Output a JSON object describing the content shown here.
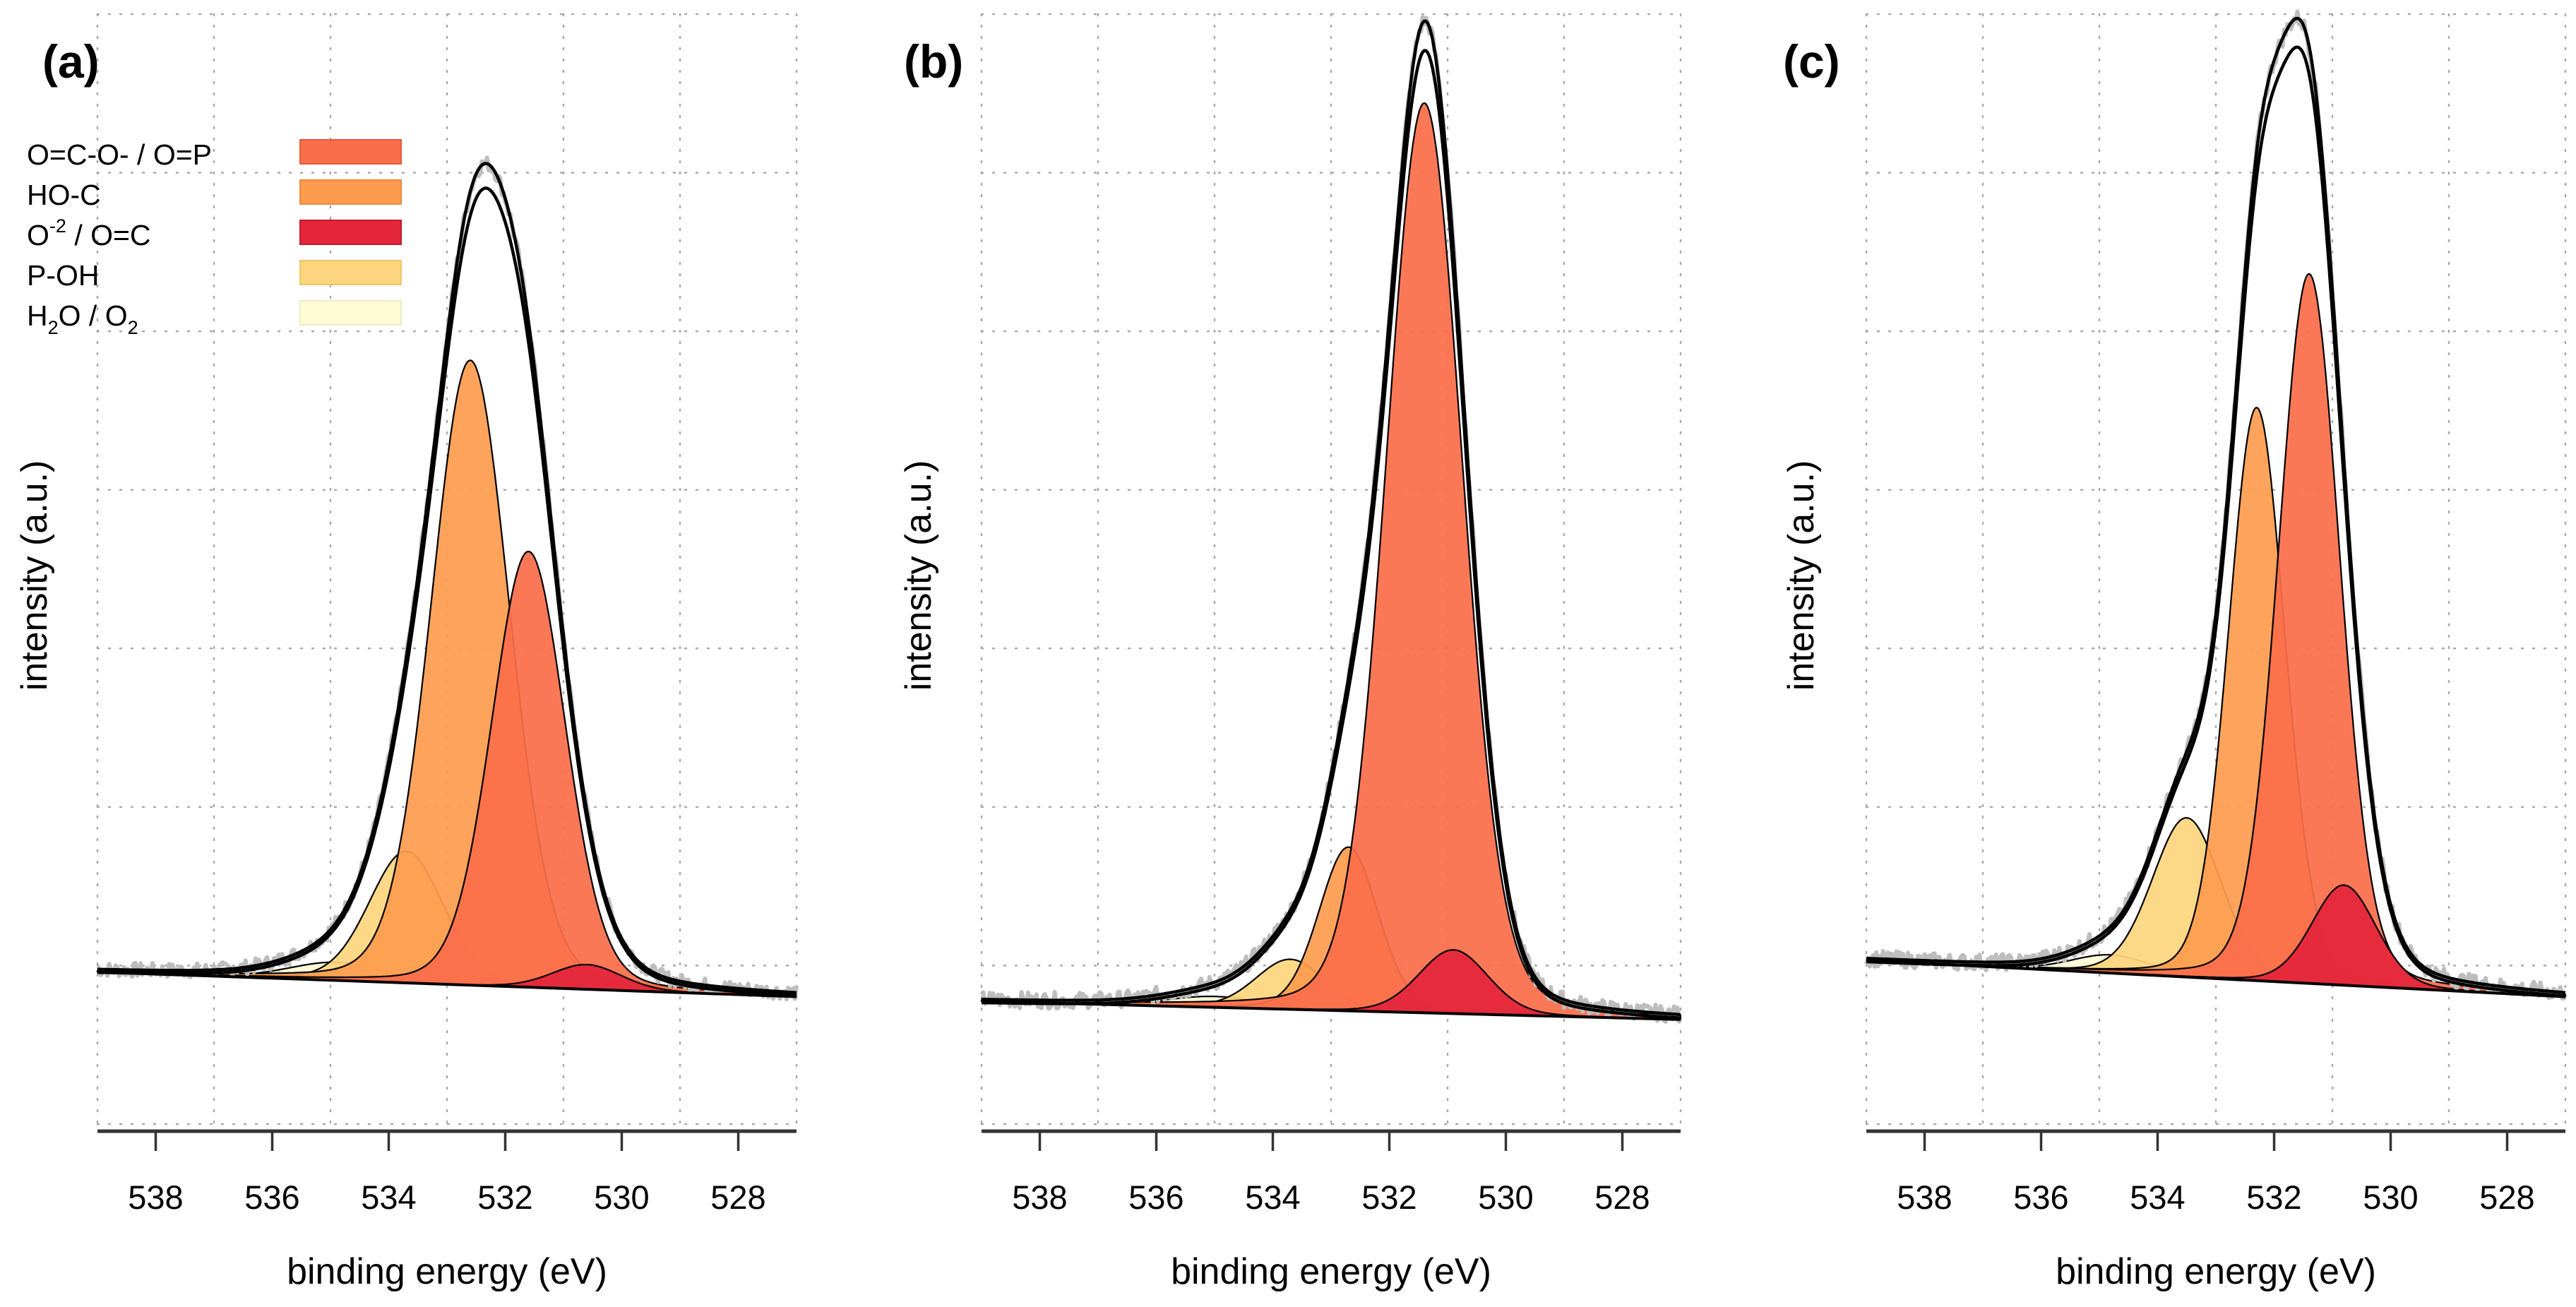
{
  "chart_data": [
    {
      "type": "area",
      "panel_label": "(a)",
      "xlabel": "binding energy (eV)",
      "ylabel": "intensity (a.u.)",
      "xlim": [
        539,
        527
      ],
      "x_reversed": true,
      "ylim": [
        -0.16,
        1.19
      ],
      "x_ticks": [
        "538",
        "536",
        "534",
        "532",
        "530",
        "528"
      ],
      "grid": true,
      "baseline": {
        "start": 0.025,
        "end": -0.005
      },
      "components": [
        {
          "name": "H2O / O2",
          "center": 534.9,
          "height": 0.022,
          "fwhm": 1.9,
          "color": "#FFFBD4"
        },
        {
          "name": "P-OH",
          "center": 533.7,
          "height": 0.16,
          "fwhm": 1.5,
          "color": "#FDD57E"
        },
        {
          "name": "HO-C",
          "center": 532.6,
          "height": 0.76,
          "fwhm": 1.6,
          "color": "#FD9C4F"
        },
        {
          "name": "O=C-O- / O=P",
          "center": 531.6,
          "height": 0.53,
          "fwhm": 1.5,
          "color": "#FB6E4A"
        },
        {
          "name": "O-2 / O=C",
          "center": 530.6,
          "height": 0.03,
          "fwhm": 1.4,
          "color": "#E3263A"
        }
      ],
      "envelope_peak": 1.0
    },
    {
      "type": "area",
      "panel_label": "(b)",
      "xlabel": "binding energy (eV)",
      "ylabel": "intensity (a.u.)",
      "xlim": [
        539,
        527
      ],
      "x_reversed": true,
      "ylim": [
        -0.12,
        1.1
      ],
      "x_ticks": [
        "538",
        "536",
        "534",
        "532",
        "530",
        "528"
      ],
      "grid": true,
      "baseline": {
        "start": 0.015,
        "end": -0.005
      },
      "components": [
        {
          "name": "H2O / O2",
          "center": 535.0,
          "height": 0.012,
          "fwhm": 1.9,
          "color": "#FFFBD4"
        },
        {
          "name": "P-OH",
          "center": 533.7,
          "height": 0.055,
          "fwhm": 1.4,
          "color": "#FDD57E"
        },
        {
          "name": "HO-C",
          "center": 532.7,
          "height": 0.18,
          "fwhm": 1.2,
          "color": "#FD9C4F"
        },
        {
          "name": "O=C-O- / O=P",
          "center": 531.4,
          "height": 1.0,
          "fwhm": 1.55,
          "color": "#FB6E4A"
        },
        {
          "name": "O-2 / O=C",
          "center": 530.9,
          "height": 0.07,
          "fwhm": 1.4,
          "color": "#E3263A"
        }
      ],
      "envelope_peak": 1.09
    },
    {
      "type": "area",
      "panel_label": "(c)",
      "xlabel": "binding energy (eV)",
      "ylabel": "intensity (a.u.)",
      "xlim": [
        539,
        527
      ],
      "x_reversed": true,
      "ylim": [
        -0.14,
        1.08
      ],
      "x_ticks": [
        "538",
        "536",
        "534",
        "532",
        "530",
        "528"
      ],
      "grid": true,
      "baseline": {
        "start": 0.04,
        "end": 0.0
      },
      "components": [
        {
          "name": "H2O / O2",
          "center": 534.8,
          "height": 0.02,
          "fwhm": 1.6,
          "color": "#FFFBD4"
        },
        {
          "name": "P-OH",
          "center": 533.5,
          "height": 0.175,
          "fwhm": 1.4,
          "color": "#FDD57E"
        },
        {
          "name": "HO-C",
          "center": 532.3,
          "height": 0.63,
          "fwhm": 1.15,
          "color": "#FD9C4F"
        },
        {
          "name": "O=C-O- / O=P",
          "center": 531.4,
          "height": 0.78,
          "fwhm": 1.25,
          "color": "#FB6E4A"
        },
        {
          "name": "O-2 / O=C",
          "center": 530.8,
          "height": 0.11,
          "fwhm": 1.3,
          "color": "#E3263A"
        }
      ],
      "envelope_peak": 1.06
    }
  ],
  "legend": {
    "placement": "top-left of panel (a)",
    "items": [
      {
        "name": "O=C-O- / O=P",
        "color": "#FB6E4A"
      },
      {
        "name": "HO-C",
        "color": "#FD9C4F"
      },
      {
        "name": "O-2 / O=C",
        "color": "#E3263A"
      },
      {
        "name": "P-OH",
        "color": "#FDD57E"
      },
      {
        "name": "H2O / O2",
        "color": "#FFFBD4"
      }
    ]
  },
  "style": {
    "envelope_color": "#000000",
    "raw_data_color": "#BDBDBD",
    "grid_color": "#A9A9A9",
    "axis_color": "#333333"
  }
}
